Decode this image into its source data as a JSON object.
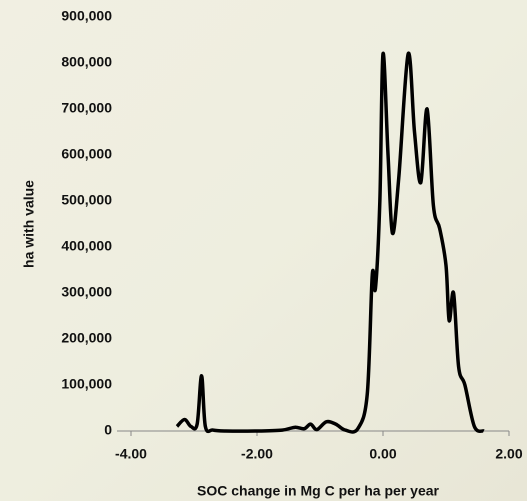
{
  "chart_data": {
    "type": "line",
    "x_label": "SOC change in Mg C per ha per year",
    "y_label": "ha with value",
    "xlim": [
      -4,
      2
    ],
    "ylim": [
      0,
      900000
    ],
    "xticks": [
      {
        "value": -4,
        "label": "-4.00"
      },
      {
        "value": -2,
        "label": "-2.00"
      },
      {
        "value": 0,
        "label": "0.00"
      },
      {
        "value": 2,
        "label": "2.00"
      }
    ],
    "yticks": [
      0,
      {
        "value": 100000,
        "label": "100,000"
      },
      {
        "value": 200000,
        "label": "200,000"
      },
      {
        "value": 300000,
        "label": "300,000"
      },
      {
        "value": 400000,
        "label": "400,000"
      },
      {
        "value": 500000,
        "label": "500,000"
      },
      {
        "value": 600000,
        "label": "600,000"
      },
      {
        "value": 700000,
        "label": "700,000"
      },
      {
        "value": 800000,
        "label": "800,000"
      },
      {
        "value": 900000,
        "label": "900,000"
      }
    ],
    "color": "#000000",
    "x": [
      -3.27,
      -3.15,
      -3.05,
      -2.95,
      -2.88,
      -2.82,
      -2.7,
      -2.5,
      -2.0,
      -1.6,
      -1.4,
      -1.25,
      -1.15,
      -1.05,
      -0.9,
      -0.75,
      -0.6,
      -0.4,
      -0.25,
      -0.17,
      -0.12,
      -0.05,
      0.0,
      0.08,
      0.15,
      0.25,
      0.4,
      0.5,
      0.6,
      0.7,
      0.8,
      0.9,
      1.0,
      1.05,
      1.12,
      1.2,
      1.3,
      1.45,
      1.6
    ],
    "values": [
      10000,
      25000,
      10000,
      15000,
      120000,
      10000,
      2000,
      0,
      0,
      2000,
      8000,
      5000,
      15000,
      3000,
      20000,
      15000,
      2000,
      5000,
      80000,
      340000,
      310000,
      500000,
      820000,
      600000,
      430000,
      550000,
      820000,
      650000,
      540000,
      700000,
      490000,
      440000,
      360000,
      240000,
      300000,
      140000,
      100000,
      10000,
      0
    ]
  }
}
